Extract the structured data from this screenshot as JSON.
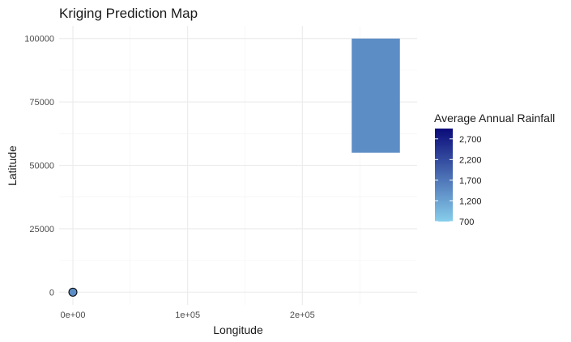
{
  "chart_data": {
    "type": "heatmap",
    "title": "Kriging Prediction Map",
    "xlabel": "Longitude",
    "ylabel": "Latitude",
    "xlim": [
      -12000,
      300000
    ],
    "ylim": [
      -5000,
      105000
    ],
    "x_ticks": [
      {
        "value": 0,
        "label": "0e+00"
      },
      {
        "value": 100000,
        "label": "1e+05"
      },
      {
        "value": 200000,
        "label": "2e+05"
      }
    ],
    "y_ticks": [
      {
        "value": 0,
        "label": "0"
      },
      {
        "value": 25000,
        "label": "25000"
      },
      {
        "value": 50000,
        "label": "50000"
      },
      {
        "value": 75000,
        "label": "75000"
      },
      {
        "value": 100000,
        "label": "100000"
      }
    ],
    "grid": true,
    "tiles": [
      {
        "x_min": 243000,
        "x_max": 285000,
        "y_min": 55000,
        "y_max": 100000,
        "value": 1450
      }
    ],
    "points": [
      {
        "x": 0,
        "y": 0,
        "value": 1450
      }
    ],
    "legend": {
      "title": "Average Annual Rainfall",
      "position": "right",
      "min": 700,
      "max": 2950,
      "low_color": "#87ceeb",
      "high_color": "#0a0a78",
      "ticks": [
        {
          "value": 700,
          "label": "700"
        },
        {
          "value": 1200,
          "label": "1,200"
        },
        {
          "value": 1700,
          "label": "1,700"
        },
        {
          "value": 2200,
          "label": "2,200"
        },
        {
          "value": 2700,
          "label": "2,700"
        }
      ]
    }
  }
}
